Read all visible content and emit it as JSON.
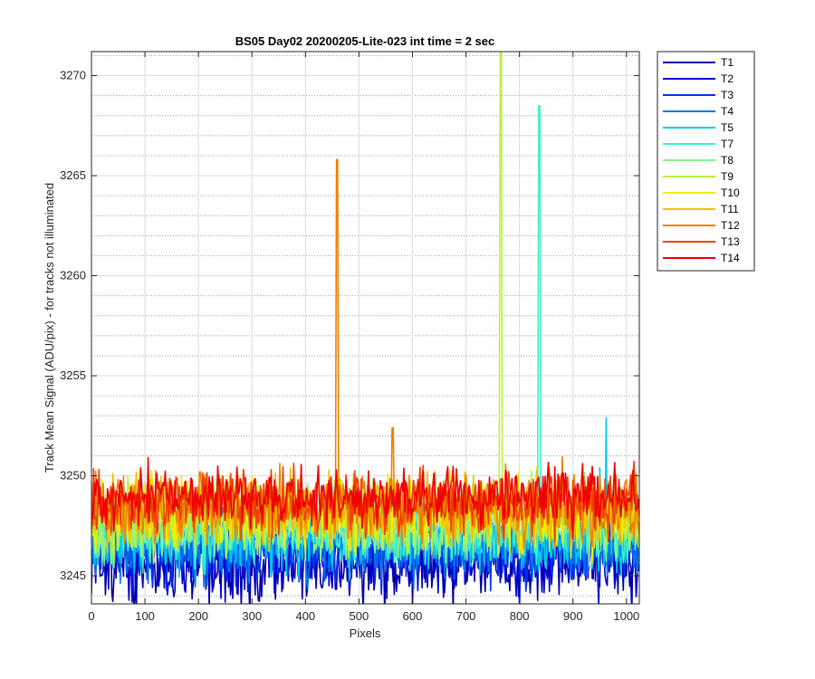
{
  "chart_data": {
    "type": "line",
    "title": "BS05 Day02 20200205-Lite-023 int time = 2 sec",
    "xlabel": "Pixels",
    "ylabel": "Track Mean Signal (ADU/pix) - for tracks not illuminated",
    "xlim": [
      0,
      1024
    ],
    "ylim": [
      3243.6,
      3271.2
    ],
    "xticks": [
      0,
      100,
      200,
      300,
      400,
      500,
      600,
      700,
      800,
      900,
      1000
    ],
    "yticks": [
      3245,
      3250,
      3255,
      3260,
      3265,
      3270
    ],
    "grid": true,
    "minor_grid_y": true,
    "legend_position": "outside-top-right",
    "series": [
      {
        "name": "T1",
        "color": "#0000AA",
        "base": 3245.8,
        "spread": 1.3,
        "spikes": []
      },
      {
        "name": "T2",
        "color": "#0000CC",
        "base": 3246.0,
        "spread": 1.2,
        "spikes": []
      },
      {
        "name": "T3",
        "color": "#0033EE",
        "base": 3246.3,
        "spread": 1.1,
        "spikes": []
      },
      {
        "name": "T4",
        "color": "#0077EE",
        "base": 3246.6,
        "spread": 1.1,
        "spikes": []
      },
      {
        "name": "T5",
        "color": "#00CCEE",
        "base": 3247.0,
        "spread": 1.1,
        "spikes": [
          {
            "x": 962,
            "y": 3252.9
          },
          {
            "x": 950,
            "y": 3250.4
          }
        ]
      },
      {
        "name": "T7",
        "color": "#40F0C8",
        "base": 3247.3,
        "spread": 1.1,
        "spikes": [
          {
            "x": 837,
            "y": 3268.5
          }
        ]
      },
      {
        "name": "T8",
        "color": "#88F090",
        "base": 3247.6,
        "spread": 1.1,
        "spikes": []
      },
      {
        "name": "T9",
        "color": "#BBF040",
        "base": 3247.8,
        "spread": 1.1,
        "spikes": [
          {
            "x": 765,
            "y": 3271.2
          }
        ]
      },
      {
        "name": "T10",
        "color": "#F0F000",
        "base": 3248.1,
        "spread": 1.1,
        "spikes": []
      },
      {
        "name": "T11",
        "color": "#F0C000",
        "base": 3248.3,
        "spread": 1.1,
        "spikes": []
      },
      {
        "name": "T12",
        "color": "#F08000",
        "base": 3248.5,
        "spread": 1.1,
        "spikes": [
          {
            "x": 459,
            "y": 3265.8
          },
          {
            "x": 563,
            "y": 3252.4
          }
        ]
      },
      {
        "name": "T13",
        "color": "#F04000",
        "base": 3248.7,
        "spread": 1.0,
        "spikes": []
      },
      {
        "name": "T14",
        "color": "#F00000",
        "base": 3248.9,
        "spread": 0.9,
        "spikes": []
      }
    ]
  }
}
